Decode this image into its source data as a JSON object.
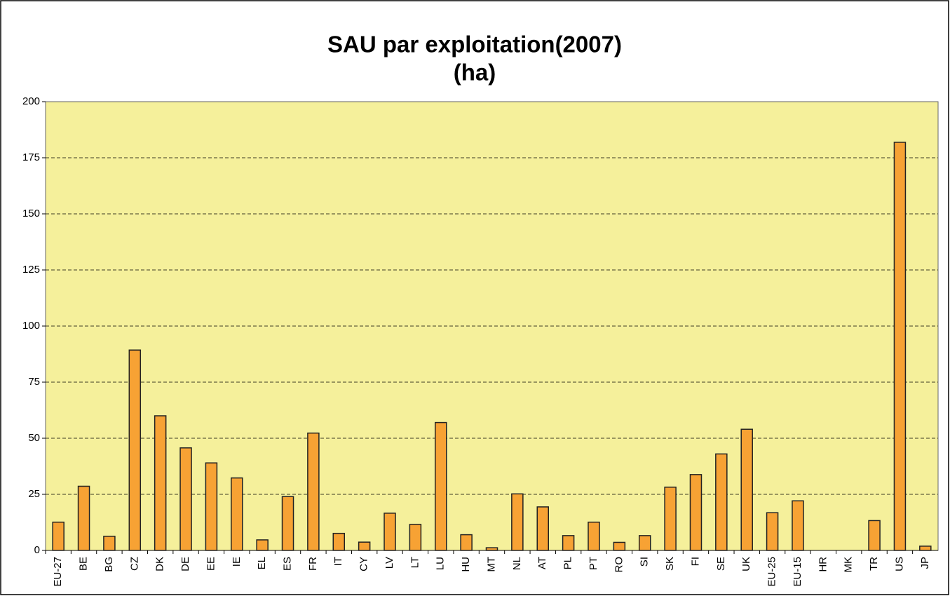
{
  "chart_data": {
    "type": "bar",
    "title": "SAU par exploitation(2007)",
    "subtitle": "(ha)",
    "categories": [
      "EU-27",
      "BE",
      "BG",
      "CZ",
      "DK",
      "DE",
      "EE",
      "IE",
      "EL",
      "ES",
      "FR",
      "IT",
      "CY",
      "LV",
      "LT",
      "LU",
      "HU",
      "MT",
      "NL",
      "AT",
      "PL",
      "PT",
      "RO",
      "SI",
      "SK",
      "FI",
      "SE",
      "UK",
      "EU-25",
      "EU-15",
      "HR",
      "MK",
      "TR",
      "US",
      "JP"
    ],
    "values": [
      12.6,
      28.6,
      6.3,
      89.3,
      60,
      45.7,
      39,
      32.3,
      4.7,
      24,
      52.3,
      7.6,
      3.7,
      16.6,
      11.6,
      57,
      7,
      1.2,
      25.2,
      19.4,
      6.6,
      12.6,
      3.6,
      6.6,
      28.2,
      33.8,
      43,
      54,
      16.8,
      22.1,
      null,
      null,
      13.3,
      181.9,
      1.9
    ],
    "color": "#f7a234",
    "ylim": [
      0,
      200
    ],
    "yticks": [
      0,
      25,
      50,
      75,
      100,
      125,
      150,
      175,
      200
    ],
    "grid": true
  }
}
